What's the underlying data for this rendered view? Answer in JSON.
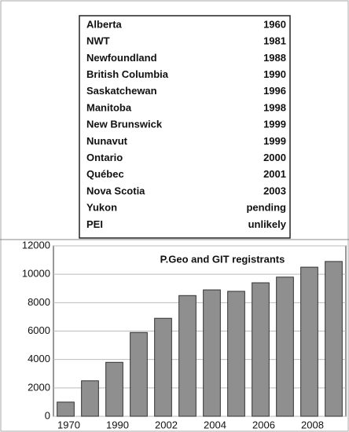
{
  "table": {
    "rows": [
      [
        "Alberta",
        "1960"
      ],
      [
        "NWT",
        "1981"
      ],
      [
        "Newfoundland",
        "1988"
      ],
      [
        "British Columbia",
        "1990"
      ],
      [
        "Saskatchewan",
        "1996"
      ],
      [
        "Manitoba",
        "1998"
      ],
      [
        "New Brunswick",
        "1999"
      ],
      [
        "Nunavut",
        "1999"
      ],
      [
        "Ontario",
        "2000"
      ],
      [
        "Québec",
        "2001"
      ],
      [
        "Nova Scotia",
        "2003"
      ],
      [
        "Yukon",
        "pending"
      ],
      [
        "PEI",
        "unlikely"
      ]
    ]
  },
  "chart_data": {
    "type": "bar",
    "title": "P.Geo and GIT registrants",
    "categories": [
      "1970",
      null,
      "1990",
      null,
      "2002",
      null,
      "2004",
      null,
      "2006",
      null,
      "2008",
      null
    ],
    "values": [
      1000,
      2500,
      3800,
      5900,
      6900,
      8500,
      8900,
      8800,
      9400,
      9800,
      10500,
      10900
    ],
    "color": "#8f8f8f",
    "ylim": [
      0,
      12000
    ],
    "yticks": [
      0,
      2000,
      4000,
      6000,
      8000,
      10000,
      12000
    ],
    "grid": true
  }
}
